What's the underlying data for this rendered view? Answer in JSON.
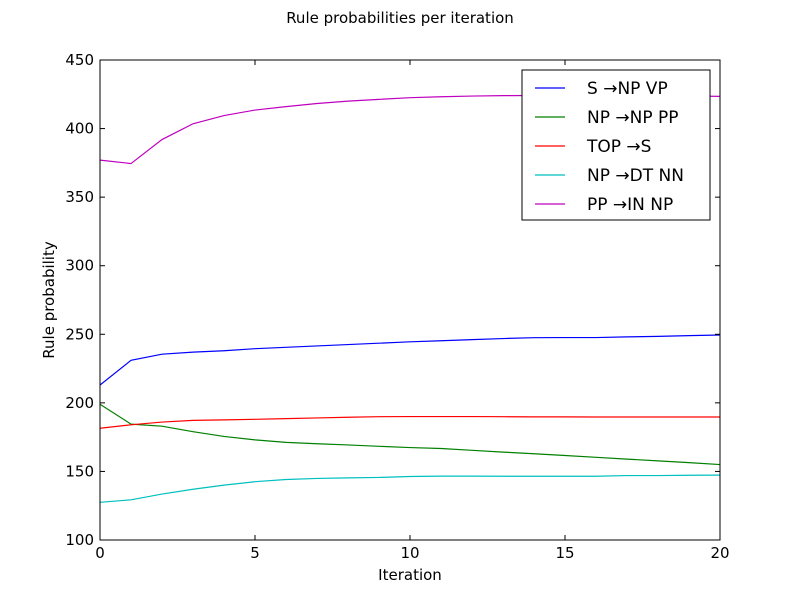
{
  "chart_data": {
    "type": "line",
    "title": "Rule probabilities per iteration",
    "xlabel": "Iteration",
    "ylabel": "Rule probability",
    "xlim": [
      0,
      20
    ],
    "ylim": [
      100,
      450
    ],
    "xticks": [
      0,
      5,
      10,
      15,
      20
    ],
    "yticks": [
      100,
      150,
      200,
      250,
      300,
      350,
      400,
      450
    ],
    "grid": false,
    "legend_position": "top-right",
    "x": [
      0,
      1,
      2,
      3,
      4,
      5,
      6,
      7,
      8,
      9,
      10,
      11,
      12,
      13,
      14,
      15,
      16,
      17,
      18,
      19,
      20
    ],
    "series": [
      {
        "name": "S →NP VP",
        "color": "#0000ff",
        "values": [
          213,
          231,
          235.5,
          237,
          238,
          239.5,
          240.5,
          241.5,
          242.5,
          243.5,
          244.5,
          245.3,
          246.1,
          246.9,
          247.5,
          247.6,
          247.6,
          248.1,
          248.5,
          249,
          249.5
        ]
      },
      {
        "name": "NP →NP PP",
        "color": "#008000",
        "values": [
          199,
          184.5,
          183,
          179,
          175.5,
          173,
          171.2,
          170.2,
          169.3,
          168.3,
          167.4,
          166.7,
          165.4,
          164.1,
          162.9,
          161.6,
          160.3,
          159,
          157.7,
          156.4,
          155
        ]
      },
      {
        "name": "TOP →S",
        "color": "#ff0000",
        "values": [
          181.5,
          184,
          186,
          187.2,
          187.6,
          188,
          188.5,
          189,
          189.5,
          189.9,
          190,
          190,
          190,
          189.9,
          189.8,
          189.8,
          189.7,
          189.7,
          189.7,
          189.7,
          189.7
        ]
      },
      {
        "name": "NP →DT NN",
        "color": "#00bfbf",
        "values": [
          127.5,
          129.3,
          133.5,
          137,
          140,
          142.5,
          144.1,
          144.9,
          145.3,
          145.6,
          146.3,
          146.6,
          146.6,
          146.5,
          146.5,
          146.5,
          146.5,
          147,
          147,
          147.2,
          147.3
        ]
      },
      {
        "name": "PP →IN NP",
        "color": "#bf00bf",
        "values": [
          377,
          374.5,
          392,
          403.5,
          409.5,
          413.5,
          416,
          418.3,
          420,
          421.3,
          422.5,
          423.2,
          423.7,
          424,
          424.1,
          424.1,
          424,
          424,
          424,
          423.8,
          423.5
        ]
      }
    ]
  }
}
